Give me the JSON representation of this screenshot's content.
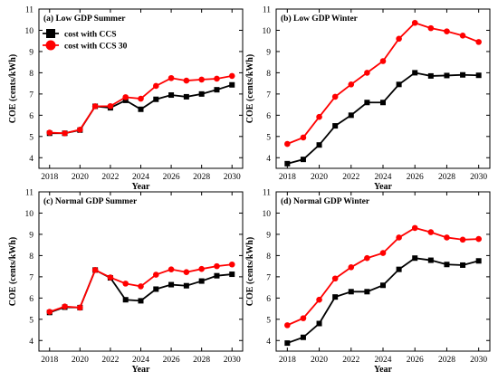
{
  "figure": {
    "legend": [
      {
        "label": "cost with CCS",
        "color": "#000000",
        "marker": "square"
      },
      {
        "label": "cost with CCS 30",
        "color": "#ff0000",
        "marker": "circle"
      }
    ]
  },
  "chart_data": [
    {
      "type": "line",
      "title": "(a) Low GDP Summer",
      "xlabel": "Year",
      "ylabel": "COE (cents/kWh)",
      "xlim": [
        2017.3,
        2030.7
      ],
      "ylim": [
        3.5,
        11
      ],
      "xticks": [
        2018,
        2020,
        2022,
        2024,
        2026,
        2028,
        2030
      ],
      "yticks": [
        4,
        5,
        6,
        7,
        8,
        9,
        10,
        11
      ],
      "legend": "top-left",
      "x": [
        2018,
        2019,
        2020,
        2021,
        2022,
        2023,
        2024,
        2025,
        2026,
        2027,
        2028,
        2029,
        2030
      ],
      "series": [
        {
          "name": "cost with CCS",
          "color": "#000000",
          "marker": "square",
          "values": [
            5.15,
            5.15,
            5.3,
            6.42,
            6.35,
            6.7,
            6.28,
            6.75,
            6.95,
            6.87,
            7.0,
            7.2,
            7.43
          ]
        },
        {
          "name": "cost with CCS 30",
          "color": "#ff0000",
          "marker": "circle",
          "values": [
            5.18,
            5.15,
            5.32,
            6.42,
            6.43,
            6.85,
            6.78,
            7.38,
            7.75,
            7.63,
            7.68,
            7.72,
            7.85
          ]
        }
      ]
    },
    {
      "type": "line",
      "title": "(b) Low GDP Winter",
      "xlabel": "Year",
      "ylabel": "COE (cents/kWh)",
      "xlim": [
        2017.3,
        2030.7
      ],
      "ylim": [
        3.5,
        11
      ],
      "xticks": [
        2018,
        2020,
        2022,
        2024,
        2026,
        2028,
        2030
      ],
      "yticks": [
        4,
        5,
        6,
        7,
        8,
        9,
        10,
        11
      ],
      "x": [
        2018,
        2019,
        2020,
        2021,
        2022,
        2023,
        2024,
        2025,
        2026,
        2027,
        2028,
        2029,
        2030
      ],
      "series": [
        {
          "name": "cost with CCS",
          "color": "#000000",
          "marker": "square",
          "values": [
            3.72,
            3.92,
            4.6,
            5.5,
            6.0,
            6.6,
            6.6,
            7.45,
            8.0,
            7.85,
            7.87,
            7.9,
            7.88
          ]
        },
        {
          "name": "cost with CCS 30",
          "color": "#ff0000",
          "marker": "circle",
          "values": [
            4.65,
            4.95,
            5.92,
            6.87,
            7.45,
            8.0,
            8.55,
            9.6,
            10.35,
            10.1,
            9.95,
            9.75,
            9.45
          ]
        }
      ]
    },
    {
      "type": "line",
      "title": "(c) Normal GDP Summer",
      "xlabel": "Year",
      "ylabel": "COE (cents/kWh)",
      "xlim": [
        2017.3,
        2030.7
      ],
      "ylim": [
        3.5,
        11
      ],
      "xticks": [
        2018,
        2020,
        2022,
        2024,
        2026,
        2028,
        2030
      ],
      "yticks": [
        4,
        5,
        6,
        7,
        8,
        9,
        10,
        11
      ],
      "x": [
        2018,
        2019,
        2020,
        2021,
        2022,
        2023,
        2024,
        2025,
        2026,
        2027,
        2028,
        2029,
        2030
      ],
      "series": [
        {
          "name": "cost with CCS",
          "color": "#000000",
          "marker": "square",
          "values": [
            5.32,
            5.57,
            5.55,
            7.32,
            6.95,
            5.92,
            5.87,
            6.42,
            6.63,
            6.58,
            6.8,
            7.05,
            7.12
          ]
        },
        {
          "name": "cost with CCS 30",
          "color": "#ff0000",
          "marker": "circle",
          "values": [
            5.35,
            5.6,
            5.55,
            7.32,
            6.97,
            6.68,
            6.55,
            7.1,
            7.35,
            7.22,
            7.37,
            7.5,
            7.58
          ]
        }
      ]
    },
    {
      "type": "line",
      "title": "(d) Normal GDP Winter",
      "xlabel": "Year",
      "ylabel": "COE (cents/kWh)",
      "xlim": [
        2017.3,
        2030.7
      ],
      "ylim": [
        3.5,
        11
      ],
      "xticks": [
        2018,
        2020,
        2022,
        2024,
        2026,
        2028,
        2030
      ],
      "yticks": [
        4,
        5,
        6,
        7,
        8,
        9,
        10,
        11
      ],
      "x": [
        2018,
        2019,
        2020,
        2021,
        2022,
        2023,
        2024,
        2025,
        2026,
        2027,
        2028,
        2029,
        2030
      ],
      "series": [
        {
          "name": "cost with CCS",
          "color": "#000000",
          "marker": "square",
          "values": [
            3.88,
            4.15,
            4.8,
            6.05,
            6.3,
            6.3,
            6.6,
            7.35,
            7.88,
            7.78,
            7.58,
            7.55,
            7.75
          ]
        },
        {
          "name": "cost with CCS 30",
          "color": "#ff0000",
          "marker": "circle",
          "values": [
            4.72,
            5.05,
            5.92,
            6.92,
            7.45,
            7.88,
            8.12,
            8.85,
            9.3,
            9.1,
            8.85,
            8.75,
            8.78
          ]
        }
      ]
    }
  ]
}
